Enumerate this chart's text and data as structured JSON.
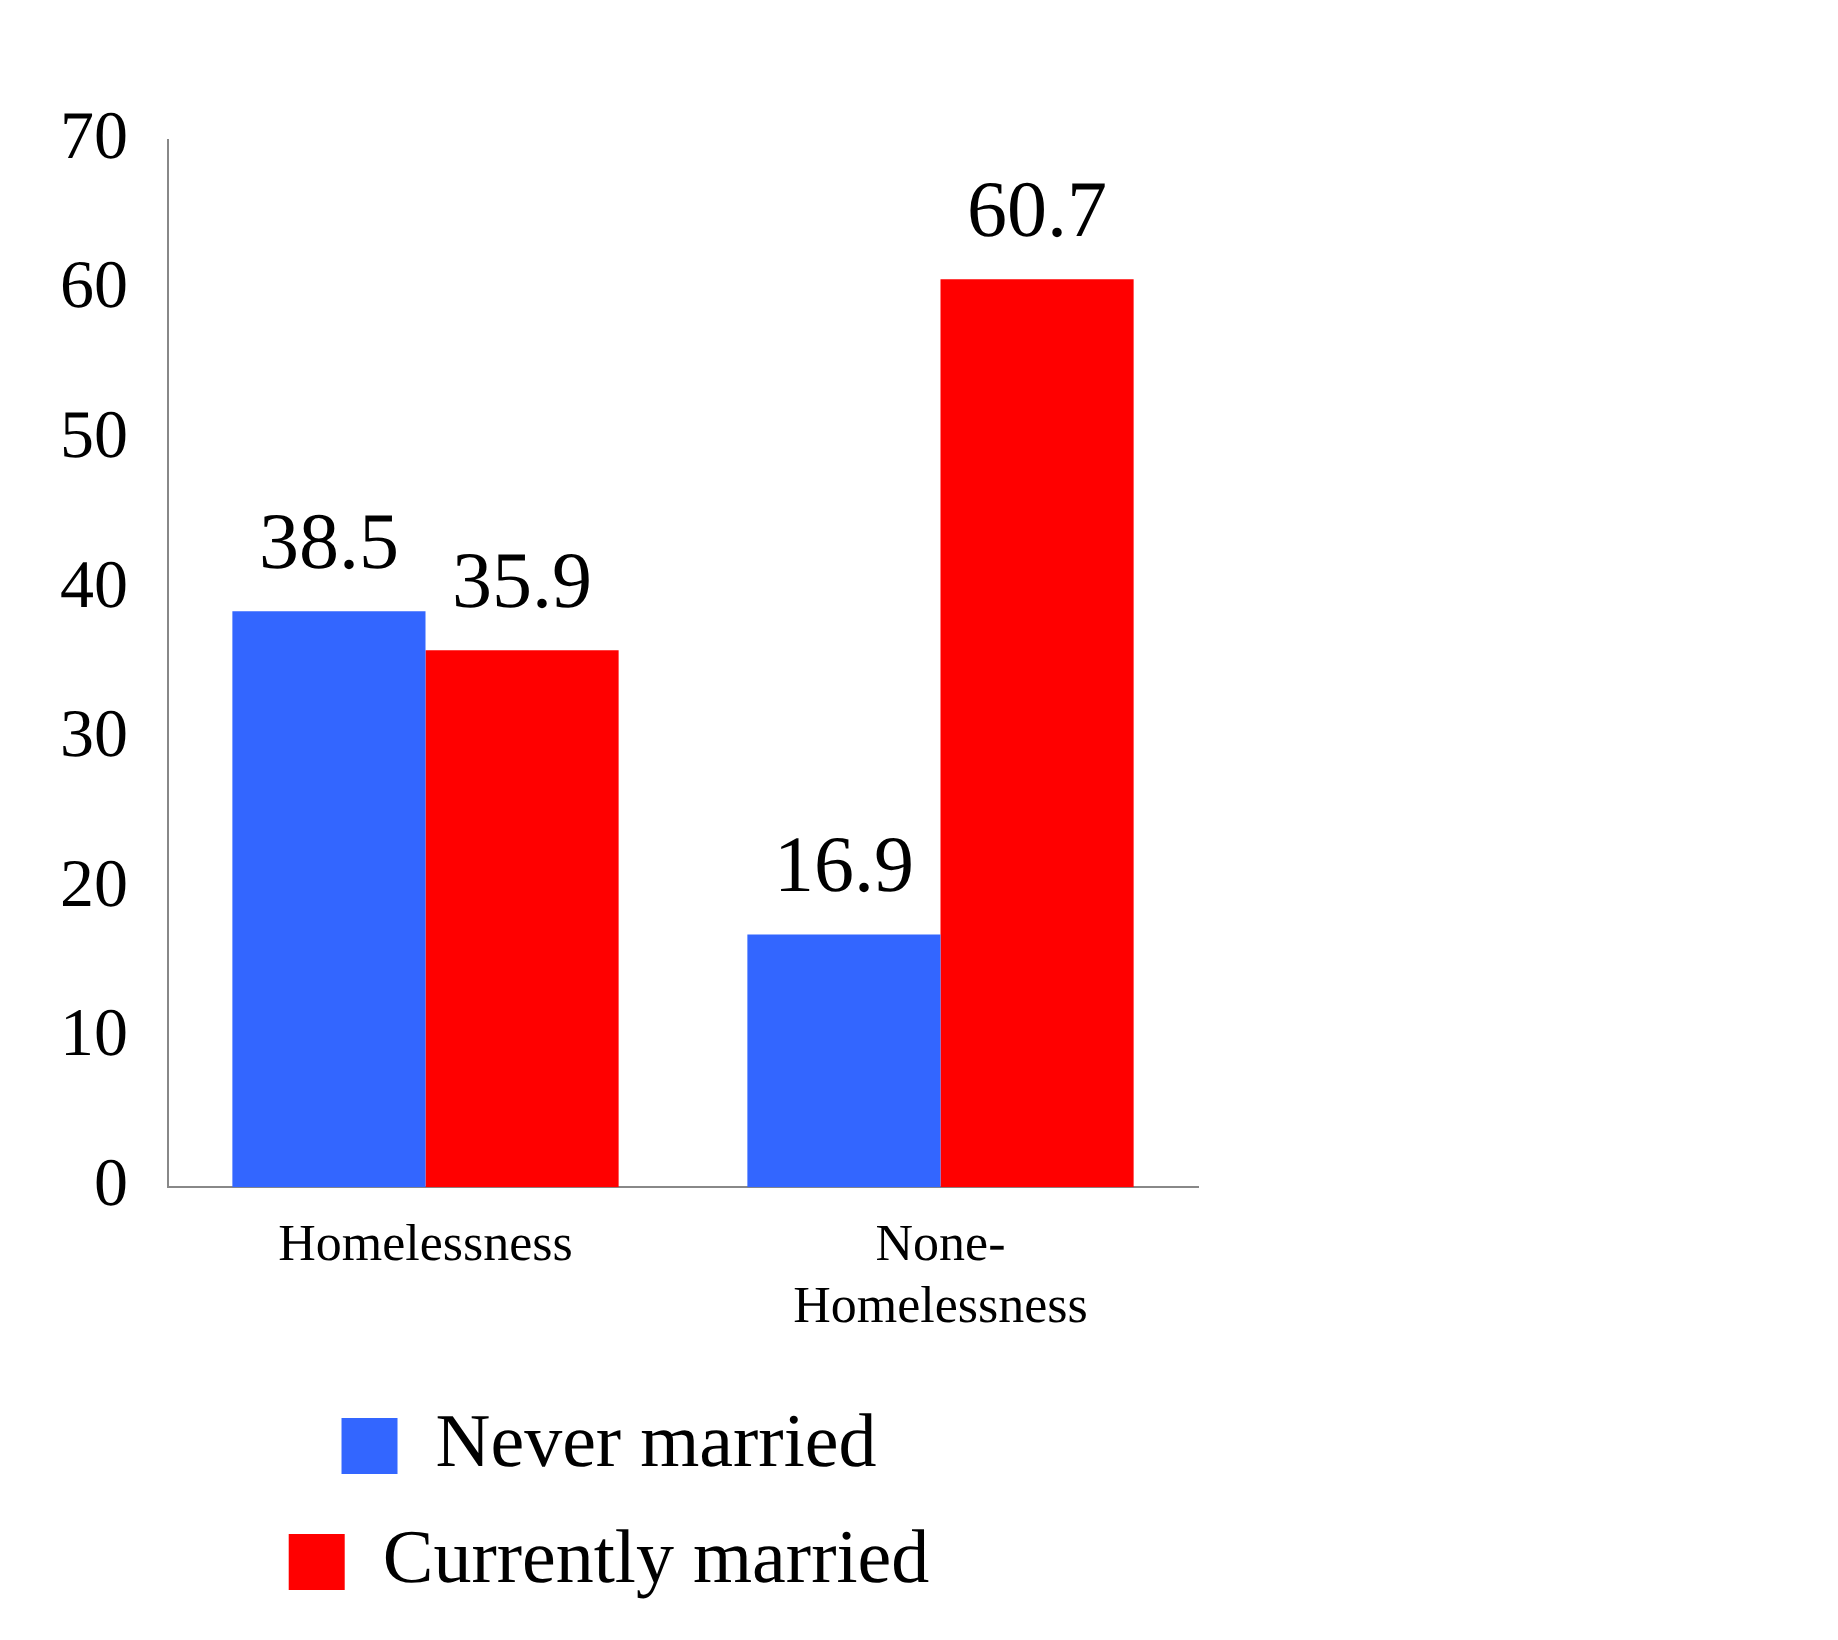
{
  "chart_data": {
    "type": "bar",
    "categories": [
      "Homelessness",
      "None-Homelessness"
    ],
    "series": [
      {
        "name": "Never married",
        "color": "#3366ff",
        "values": [
          38.5,
          16.9
        ]
      },
      {
        "name": "Currently married",
        "color": "#ff0000",
        "values": [
          35.9,
          60.7
        ]
      }
    ],
    "ylim": [
      0,
      70
    ],
    "yticks": [
      0,
      10,
      20,
      30,
      40,
      50,
      60,
      70
    ],
    "grid": false,
    "legend": "bottom",
    "data_labels": true
  }
}
